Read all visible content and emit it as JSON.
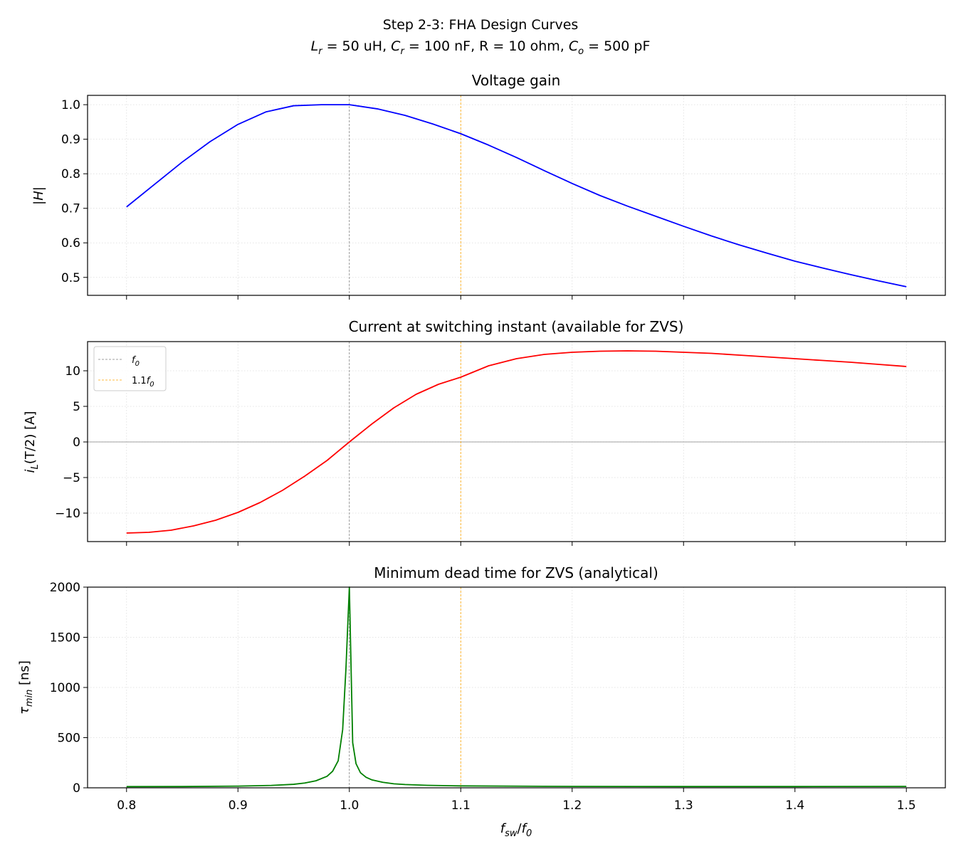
{
  "figure": {
    "suptitle_line1": "Step 2-3: FHA Design Curves",
    "suptitle_line2": {
      "lr_sym": "L",
      "lr_sub": "r",
      "lr_val": " = 50 uH, ",
      "cr_sym": "C",
      "cr_sub": "r",
      "cr_val": " = 100 nF, R = 10 ohm, ",
      "co_sym": "C",
      "co_sub": "o",
      "co_val": " = 500 pF"
    },
    "xlabel": {
      "sym": "f",
      "sub": "sw",
      "slash": "/",
      "sym2": "f",
      "sub2": "0"
    }
  },
  "colors": {
    "gain": "#0000ff",
    "current": "#ff0000",
    "deadtime": "#008000",
    "f0_line": "#808080",
    "f11_line": "#ffa500",
    "grid": "#dcdcdc"
  },
  "chart_data": [
    {
      "type": "line",
      "title": "Voltage gain",
      "ylabel": "|H|",
      "xlim": [
        0.765,
        1.535
      ],
      "ylim": [
        0.448,
        1.027
      ],
      "yticks": [
        0.5,
        0.6,
        0.7,
        0.8,
        0.9,
        1.0
      ],
      "ytick_labels": [
        "0.5",
        "0.6",
        "0.7",
        "0.8",
        "0.9",
        "1.0"
      ],
      "grid": true,
      "vlines": [
        1.0,
        1.1
      ],
      "series": [
        {
          "x": [
            0.8,
            0.825,
            0.85,
            0.875,
            0.9,
            0.925,
            0.95,
            0.975,
            1.0,
            1.025,
            1.05,
            1.075,
            1.1,
            1.125,
            1.15,
            1.175,
            1.2,
            1.225,
            1.25,
            1.275,
            1.3,
            1.325,
            1.35,
            1.375,
            1.4,
            1.425,
            1.45,
            1.475,
            1.5
          ],
          "y": [
            0.704,
            0.769,
            0.834,
            0.893,
            0.943,
            0.979,
            0.997,
            1.0,
            1.0,
            0.988,
            0.969,
            0.944,
            0.916,
            0.883,
            0.847,
            0.809,
            0.772,
            0.737,
            0.706,
            0.677,
            0.648,
            0.62,
            0.594,
            0.57,
            0.547,
            0.527,
            0.508,
            0.49,
            0.473
          ]
        }
      ]
    },
    {
      "type": "line",
      "title": "Current at switching instant (available for ZVS)",
      "ylabel": {
        "sym": "i",
        "sub": "L",
        "rest": "(T/2) [A]"
      },
      "xlim": [
        0.765,
        1.535
      ],
      "ylim": [
        -14.0,
        14.1
      ],
      "yticks": [
        -10,
        -5,
        0,
        5,
        10
      ],
      "ytick_labels": [
        "−10",
        "−5",
        "0",
        "5",
        "10"
      ],
      "grid": true,
      "hline": 0,
      "vlines": [
        1.0,
        1.1
      ],
      "legend": {
        "position": "top-left",
        "entries": [
          {
            "sym": "f",
            "sub": "0",
            "prefix": ""
          },
          {
            "sym": "f",
            "sub": "0",
            "prefix": "1.1"
          }
        ]
      },
      "series": [
        {
          "x": [
            0.8,
            0.82,
            0.84,
            0.86,
            0.88,
            0.9,
            0.92,
            0.94,
            0.96,
            0.98,
            1.0,
            1.02,
            1.04,
            1.06,
            1.08,
            1.1,
            1.125,
            1.15,
            1.175,
            1.2,
            1.225,
            1.25,
            1.275,
            1.3,
            1.325,
            1.35,
            1.375,
            1.4,
            1.425,
            1.45,
            1.475,
            1.5
          ],
          "y": [
            -12.8,
            -12.7,
            -12.4,
            -11.8,
            -11.0,
            -9.9,
            -8.5,
            -6.8,
            -4.8,
            -2.6,
            0.0,
            2.5,
            4.8,
            6.7,
            8.1,
            9.1,
            10.7,
            11.7,
            12.3,
            12.6,
            12.75,
            12.8,
            12.75,
            12.6,
            12.45,
            12.2,
            11.95,
            11.7,
            11.45,
            11.2,
            10.9,
            10.6
          ]
        }
      ]
    },
    {
      "type": "line",
      "title": "Minimum dead time for ZVS (analytical)",
      "ylabel": {
        "sym": "τ",
        "sub": "min",
        "rest": " [ns]"
      },
      "xlabel": "f_sw/f_0",
      "xlim": [
        0.765,
        1.535
      ],
      "ylim": [
        0,
        2000
      ],
      "xticks": [
        0.8,
        0.9,
        1.0,
        1.1,
        1.2,
        1.3,
        1.4,
        1.5
      ],
      "xtick_labels": [
        "0.8",
        "0.9",
        "1.0",
        "1.1",
        "1.2",
        "1.3",
        "1.4",
        "1.5"
      ],
      "yticks": [
        0,
        500,
        1000,
        1500,
        2000
      ],
      "ytick_labels": [
        "0",
        "500",
        "1000",
        "1500",
        "2000"
      ],
      "grid": true,
      "vlines": [
        1.0,
        1.1
      ],
      "series": [
        {
          "x": [
            0.8,
            0.85,
            0.9,
            0.93,
            0.95,
            0.96,
            0.97,
            0.98,
            0.985,
            0.99,
            0.994,
            0.997,
            1.0,
            1.003,
            1.006,
            1.01,
            1.015,
            1.02,
            1.03,
            1.04,
            1.05,
            1.07,
            1.1,
            1.2,
            1.3,
            1.4,
            1.5
          ],
          "y": [
            12,
            13,
            17,
            24,
            35,
            48,
            70,
            115,
            165,
            270,
            580,
            1200,
            2000,
            450,
            240,
            150,
            105,
            80,
            55,
            40,
            33,
            25,
            19,
            14,
            13,
            13,
            14
          ]
        }
      ]
    }
  ]
}
